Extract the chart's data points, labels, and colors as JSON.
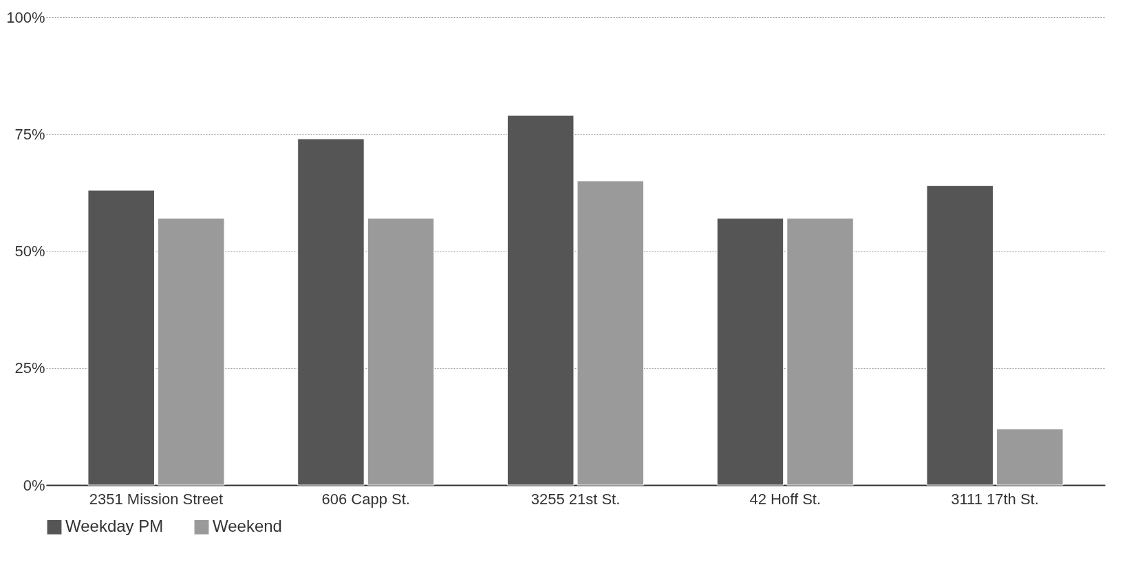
{
  "chart_data": {
    "type": "bar",
    "categories": [
      "2351 Mission Street",
      "606 Capp St.",
      "3255 21st St.",
      "42 Hoff St.",
      "3111 17th St."
    ],
    "series": [
      {
        "name": "Weekday PM",
        "color": "#555555",
        "values": [
          63,
          74,
          79,
          57,
          64
        ]
      },
      {
        "name": "Weekend",
        "color": "#9a9a9a",
        "values": [
          57,
          57,
          65,
          57,
          12
        ]
      }
    ],
    "ylim": [
      0,
      100
    ],
    "yticks": [
      {
        "value": 0,
        "label": "0%"
      },
      {
        "value": 25,
        "label": "25%"
      },
      {
        "value": 50,
        "label": "50%"
      },
      {
        "value": 75,
        "label": "75%"
      },
      {
        "value": 100,
        "label": "100%"
      }
    ],
    "grid": "y",
    "legend": "bottom"
  }
}
